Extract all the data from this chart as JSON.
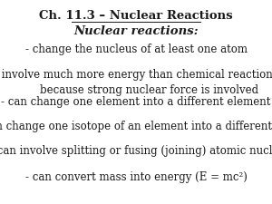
{
  "title": "Ch. 11.3 – Nuclear Reactions",
  "subtitle": "Nuclear reactions:",
  "lines": [
    "- change the nucleus of at least one atom",
    "- involve much more energy than chemical reactions\n        because strong nuclear force is involved",
    "- can change one element into a different element",
    "- can change one isotope of an element into a different one",
    "- can involve splitting or fusing (joining) atomic nuclei",
    "- can convert mass into energy (E = mc²)"
  ],
  "bg_color": "#ffffff",
  "text_color": "#1a1a1a",
  "title_fontsize": 9.5,
  "subtitle_fontsize": 9.5,
  "body_fontsize": 8.5,
  "fig_width": 3.0,
  "fig_height": 2.25
}
